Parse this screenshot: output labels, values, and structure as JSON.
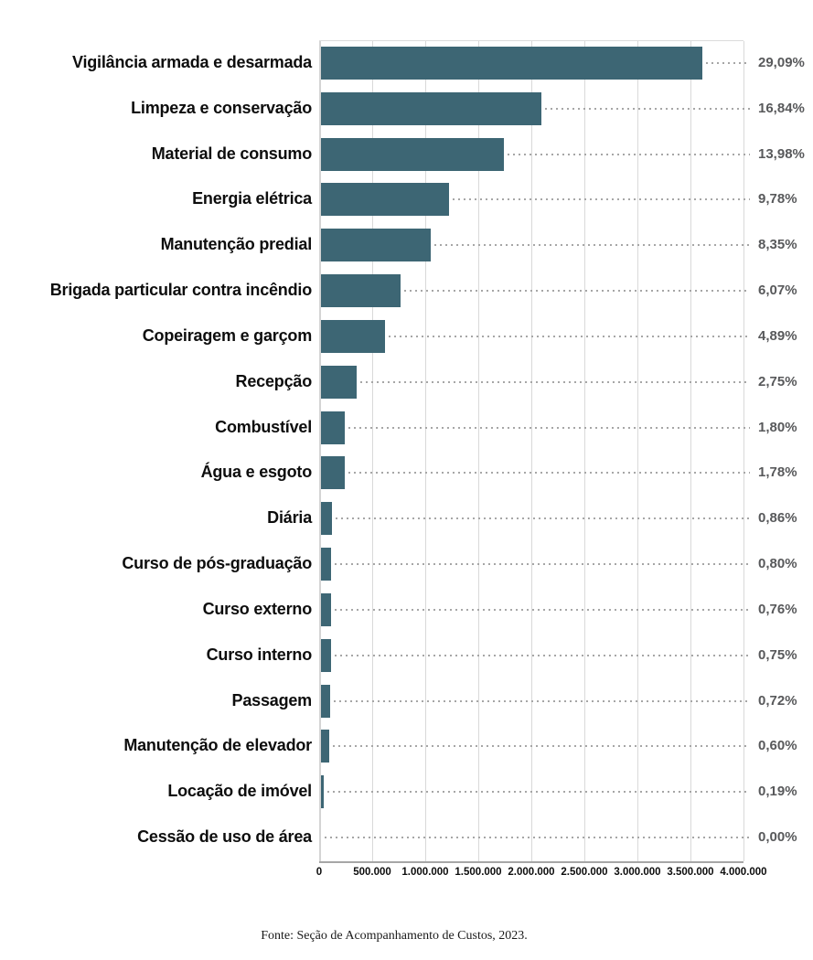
{
  "chart_data": {
    "type": "bar",
    "orientation": "horizontal",
    "title": "",
    "xlabel": "",
    "ylabel": "",
    "xlim": [
      0,
      4000000
    ],
    "x_ticks": [
      "0",
      "500.000",
      "1.000.000",
      "1.500.000",
      "2.000.000",
      "2.500.000",
      "3.000.000",
      "3.500.000",
      "4.000.000"
    ],
    "x_tick_values": [
      0,
      500000,
      1000000,
      1500000,
      2000000,
      2500000,
      3000000,
      3500000,
      4000000
    ],
    "grid": "vertical",
    "legend_position": "none",
    "categories": [
      "Vigilância armada e desarmada",
      "Limpeza e conservação",
      "Material de consumo",
      "Energia elétrica",
      "Manutenção predial",
      "Brigada particular contra incêndio",
      "Copeiragem e garçom",
      "Recepção",
      "Combustível",
      "Água e esgoto",
      "Diária",
      "Curso de pós-graduação",
      "Curso externo",
      "Curso interno",
      "Passagem",
      "Manutenção de elevador",
      "Locação de imóvel",
      "Cessão de uso de área"
    ],
    "values": [
      3592000,
      2080000,
      1727000,
      1208000,
      1031000,
      750000,
      604000,
      340000,
      222000,
      220000,
      106000,
      99000,
      94000,
      93000,
      89000,
      74000,
      23000,
      0
    ],
    "percents": [
      29.09,
      16.84,
      13.98,
      9.78,
      8.35,
      6.07,
      4.89,
      2.75,
      1.8,
      1.78,
      0.86,
      0.8,
      0.76,
      0.75,
      0.72,
      0.6,
      0.19,
      0.0
    ],
    "percent_labels": [
      "29,09%",
      "16,84%",
      "13,98%",
      "9,78%",
      "8,35%",
      "6,07%",
      "4,89%",
      "2,75%",
      "1,80%",
      "1,78%",
      "0,86%",
      "0,80%",
      "0,76%",
      "0,75%",
      "0,72%",
      "0,60%",
      "0,19%",
      "0,00%"
    ]
  },
  "footer": {
    "source_label": "Fonte: Seção de Acompanhamento de Custos, 2023."
  },
  "colors": {
    "bar": "#3D6674",
    "gridline": "#D9D9D9",
    "axis_line": "#A6A6A6",
    "leader_dots": "#A6A6A6",
    "percent_text": "#58595B",
    "category_text": "#0D0D0D",
    "tick_text": "#0D0D0D"
  }
}
